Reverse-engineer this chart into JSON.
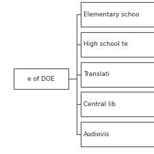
{
  "background_color": "#ffffff",
  "left_box_text": "e of DOE",
  "right_boxes": [
    "Elementary schoo",
    "High school te",
    "Translati",
    "Central lib",
    "Audiovis"
  ],
  "box_edge_color": "#4d4d4d",
  "line_color": "#4d4d4d",
  "text_color": "#2b2b2b",
  "font_size": 6.5,
  "fig_width": 2.25,
  "fig_height": 2.25,
  "dpi": 100
}
